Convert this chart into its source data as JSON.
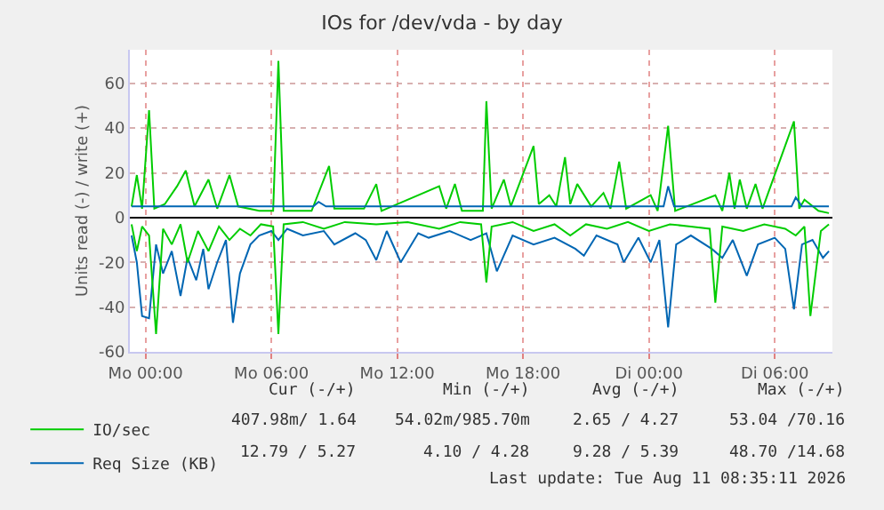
{
  "chart_data": {
    "type": "line",
    "title": "IOs for /dev/vda - by day",
    "ylabel": "Units read (-) / write (+)",
    "xlim": [
      "2026-08-09T23:15",
      "2026-08-11T08:45"
    ],
    "xticks": [
      {
        "value": "2026-08-10T00:00",
        "label": "Mo 00:00"
      },
      {
        "value": "2026-08-10T06:00",
        "label": "Mo 06:00"
      },
      {
        "value": "2026-08-10T12:00",
        "label": "Mo 12:00"
      },
      {
        "value": "2026-08-10T18:00",
        "label": "Mo 18:00"
      },
      {
        "value": "2026-08-11T00:00",
        "label": "Di 00:00"
      },
      {
        "value": "2026-08-11T06:00",
        "label": "Di 06:00"
      }
    ],
    "ylim": [
      -60,
      75
    ],
    "yticks": [
      -60,
      -40,
      -20,
      0,
      20,
      40,
      60
    ],
    "grid": true,
    "legend": "bottom left",
    "marker": "none",
    "line_style": "solid",
    "ref_lines": [
      {
        "axis": "y",
        "value": 0,
        "color": "#000000"
      }
    ],
    "series": [
      {
        "color": "#0066b3",
        "x": [
          "2026-08-09T23:20",
          "2026-08-09T23:35",
          "2026-08-09T23:50",
          "2026-08-10T00:10",
          "2026-08-10T00:30",
          "2026-08-10T00:50",
          "2026-08-10T01:15",
          "2026-08-10T01:40",
          "2026-08-10T02:00",
          "2026-08-10T02:25",
          "2026-08-10T02:45",
          "2026-08-10T03:00",
          "2026-08-10T03:25",
          "2026-08-10T03:50",
          "2026-08-10T04:10",
          "2026-08-10T04:30",
          "2026-08-10T05:00",
          "2026-08-10T05:25",
          "2026-08-10T06:00",
          "2026-08-10T06:20",
          "2026-08-10T06:45",
          "2026-08-10T07:30",
          "2026-08-10T08:30",
          "2026-08-10T09:00",
          "2026-08-10T10:00",
          "2026-08-10T10:30",
          "2026-08-10T11:00",
          "2026-08-10T11:30",
          "2026-08-10T12:10",
          "2026-08-10T13:00",
          "2026-08-10T13:30",
          "2026-08-10T14:30",
          "2026-08-10T15:30",
          "2026-08-10T16:15",
          "2026-08-10T16:45",
          "2026-08-10T17:30",
          "2026-08-10T18:30",
          "2026-08-10T19:30",
          "2026-08-10T20:30",
          "2026-08-10T20:54",
          "2026-08-10T21:30",
          "2026-08-10T22:30",
          "2026-08-10T22:48",
          "2026-08-10T23:30",
          "2026-08-11T00:05",
          "2026-08-11T00:30",
          "2026-08-11T00:55",
          "2026-08-11T01:18",
          "2026-08-11T02:00",
          "2026-08-11T03:00",
          "2026-08-11T03:30",
          "2026-08-11T04:00",
          "2026-08-11T04:40",
          "2026-08-11T05:12",
          "2026-08-11T06:00",
          "2026-08-11T06:30",
          "2026-08-11T06:55",
          "2026-08-11T07:18",
          "2026-08-11T07:48",
          "2026-08-11T08:18",
          "2026-08-11T08:35"
        ],
        "values": [
          -8,
          -20,
          -44,
          -45,
          -12,
          -25,
          -15,
          -35,
          -18,
          -28,
          -14,
          -32,
          -20,
          -10,
          -47,
          -25,
          -12,
          -8,
          -6,
          -10,
          -5,
          -8,
          -6,
          -12,
          -7,
          -10,
          -19,
          -6,
          -20,
          -7,
          -9,
          -6,
          -10,
          -7,
          -24,
          -8,
          -12,
          -9,
          -14,
          -17,
          -8,
          -12,
          -20,
          -9,
          -20,
          -10,
          -49,
          -12,
          -8,
          -14,
          -18,
          -10,
          -26,
          -12,
          -9,
          -14,
          -41,
          -12,
          -10,
          -18,
          -15
        ]
      },
      {
        "color": "#00cc00",
        "x": [
          "2026-08-09T23:20",
          "2026-08-09T23:35",
          "2026-08-09T23:50",
          "2026-08-10T00:10",
          "2026-08-10T00:30",
          "2026-08-10T00:50",
          "2026-08-10T01:15",
          "2026-08-10T01:40",
          "2026-08-10T02:00",
          "2026-08-10T02:30",
          "2026-08-10T03:00",
          "2026-08-10T03:30",
          "2026-08-10T04:00",
          "2026-08-10T04:30",
          "2026-08-10T05:00",
          "2026-08-10T05:30",
          "2026-08-10T06:05",
          "2026-08-10T06:20",
          "2026-08-10T06:35",
          "2026-08-10T07:30",
          "2026-08-10T08:30",
          "2026-08-10T09:30",
          "2026-08-10T11:00",
          "2026-08-10T12:30",
          "2026-08-10T14:00",
          "2026-08-10T15:00",
          "2026-08-10T16:00",
          "2026-08-10T16:15",
          "2026-08-10T16:30",
          "2026-08-10T17:30",
          "2026-08-10T18:30",
          "2026-08-10T19:30",
          "2026-08-10T20:15",
          "2026-08-10T21:00",
          "2026-08-10T22:00",
          "2026-08-10T23:00",
          "2026-08-11T00:00",
          "2026-08-11T01:00",
          "2026-08-11T02:00",
          "2026-08-11T02:54",
          "2026-08-11T03:10",
          "2026-08-11T03:30",
          "2026-08-11T04:30",
          "2026-08-11T05:30",
          "2026-08-11T06:30",
          "2026-08-11T07:00",
          "2026-08-11T07:25",
          "2026-08-11T07:42",
          "2026-08-11T08:12",
          "2026-08-11T08:35"
        ],
        "values": [
          -3,
          -15,
          -4,
          -8,
          -52,
          -5,
          -12,
          -3,
          -20,
          -6,
          -15,
          -4,
          -10,
          -5,
          -8,
          -3,
          -4,
          -52,
          -3,
          -2,
          -5,
          -2,
          -3,
          -2,
          -5,
          -2,
          -3,
          -29,
          -4,
          -2,
          -6,
          -3,
          -8,
          -3,
          -5,
          -2,
          -6,
          -3,
          -4,
          -5,
          -38,
          -4,
          -6,
          -3,
          -5,
          -8,
          -4,
          -44,
          -6,
          -3
        ]
      },
      {
        "name": "IO/sec",
        "color": "#00cc00",
        "x": [
          "2026-08-09T23:20",
          "2026-08-09T23:35",
          "2026-08-09T23:50",
          "2026-08-10T00:10",
          "2026-08-10T00:25",
          "2026-08-10T00:55",
          "2026-08-10T01:30",
          "2026-08-10T01:55",
          "2026-08-10T02:20",
          "2026-08-10T03:00",
          "2026-08-10T03:25",
          "2026-08-10T04:00",
          "2026-08-10T04:25",
          "2026-08-10T05:25",
          "2026-08-10T06:05",
          "2026-08-10T06:20",
          "2026-08-10T06:35",
          "2026-08-10T07:55",
          "2026-08-10T08:45",
          "2026-08-10T09:00",
          "2026-08-10T10:25",
          "2026-08-10T11:00",
          "2026-08-10T11:15",
          "2026-08-10T14:00",
          "2026-08-10T14:20",
          "2026-08-10T14:45",
          "2026-08-10T15:05",
          "2026-08-10T16:05",
          "2026-08-10T16:15",
          "2026-08-10T16:30",
          "2026-08-10T17:05",
          "2026-08-10T17:25",
          "2026-08-10T18:30",
          "2026-08-10T18:45",
          "2026-08-10T19:15",
          "2026-08-10T19:35",
          "2026-08-10T20:00",
          "2026-08-10T20:15",
          "2026-08-10T20:35",
          "2026-08-10T21:15",
          "2026-08-10T21:50",
          "2026-08-10T22:10",
          "2026-08-10T22:35",
          "2026-08-10T22:55",
          "2026-08-11T00:05",
          "2026-08-11T00:25",
          "2026-08-11T00:55",
          "2026-08-11T01:15",
          "2026-08-11T03:10",
          "2026-08-11T03:30",
          "2026-08-11T03:50",
          "2026-08-11T04:05",
          "2026-08-11T04:20",
          "2026-08-11T04:40",
          "2026-08-11T05:05",
          "2026-08-11T05:25",
          "2026-08-11T06:55",
          "2026-08-11T07:10",
          "2026-08-11T07:25",
          "2026-08-11T08:05",
          "2026-08-11T08:35"
        ],
        "values": [
          5,
          19,
          4,
          48,
          4,
          6,
          14,
          21,
          5,
          17,
          4,
          19,
          5,
          3,
          3,
          70,
          3,
          3,
          23,
          4,
          4,
          15,
          3,
          14,
          4,
          15,
          3,
          3,
          52,
          4,
          17,
          5,
          32,
          6,
          10,
          5,
          27,
          6,
          15,
          5,
          11,
          4,
          25,
          4,
          10,
          3,
          41,
          3,
          10,
          3,
          20,
          4,
          17,
          4,
          15,
          4,
          43,
          4,
          8,
          3,
          2
        ]
      },
      {
        "name": "Req Size (KB)",
        "color": "#0066b3",
        "x": [
          "2026-08-09T23:20",
          "2026-08-10T02:00",
          "2026-08-10T05:00",
          "2026-08-10T08:00",
          "2026-08-10T08:15",
          "2026-08-10T08:36",
          "2026-08-10T12:00",
          "2026-08-10T16:00",
          "2026-08-10T20:00",
          "2026-08-11T00:42",
          "2026-08-11T00:55",
          "2026-08-11T01:12",
          "2026-08-11T04:00",
          "2026-08-11T06:48",
          "2026-08-11T07:00",
          "2026-08-11T07:18",
          "2026-08-11T08:35"
        ],
        "values": [
          5,
          5,
          5,
          5,
          7,
          5,
          5,
          5,
          5,
          5,
          14,
          5,
          5,
          5,
          9,
          5,
          5
        ]
      }
    ],
    "annotations": [
      "Cur (-/+)",
      "Min (-/+)",
      "Avg (-/+)",
      "Max (-/+)",
      "407.98m/ 1.64",
      "54.02m/985.70m",
      "2.65 / 4.27",
      "53.04 /70.16",
      "12.79 / 5.27",
      "4.10 / 4.28",
      "9.28 / 5.39",
      "48.70 /14.68",
      "Last update: Tue Aug 11 08:35:11 2026"
    ]
  }
}
